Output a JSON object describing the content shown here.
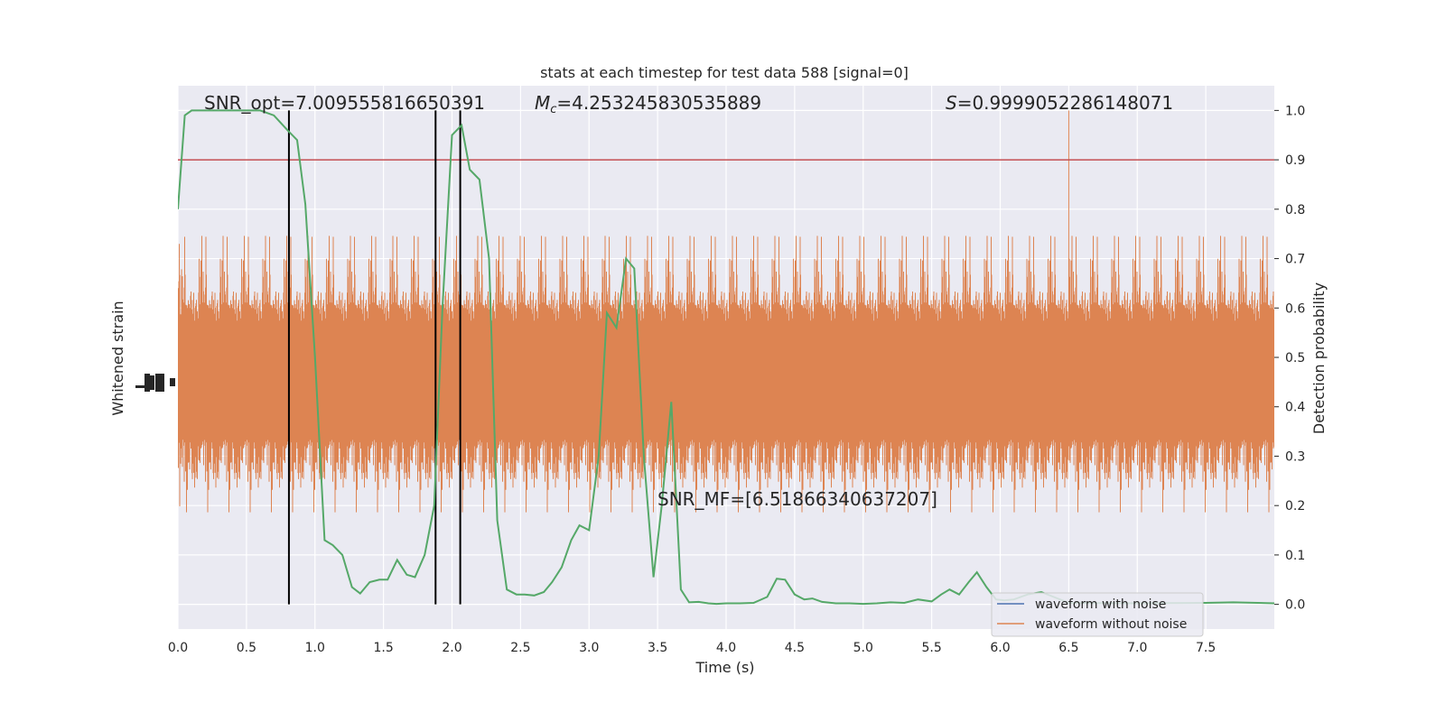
{
  "chart_data": {
    "type": "line",
    "title": "stats at each timestep for test data 588 [signal=0]",
    "xlabel": "Time (s)",
    "ylabel_left": "Whitened strain",
    "ylabel_right": "Detection probability",
    "xlim": [
      0.0,
      8.0
    ],
    "ylim_right": [
      -0.05,
      1.05
    ],
    "x_ticks": [
      "0.0",
      "0.5",
      "1.0",
      "1.5",
      "2.0",
      "2.5",
      "3.0",
      "3.5",
      "4.0",
      "4.5",
      "5.0",
      "5.5",
      "6.0",
      "6.5",
      "7.0",
      "7.5"
    ],
    "y_ticks_right": [
      "0.0",
      "0.1",
      "0.2",
      "0.3",
      "0.4",
      "0.5",
      "0.6",
      "0.7",
      "0.8",
      "0.9",
      "1.0"
    ],
    "grid": true,
    "annotations": {
      "snr_opt": "SNR_opt=7.009555816650391",
      "mc_symbol": "M",
      "mc_sub": "c",
      "mc_value": "=4.253245830535889",
      "s_symbol": "S",
      "s_value": "=0.9999052286148071",
      "snr_mf": "SNR_MF=[6.51866340637207]"
    },
    "threshold": 0.9,
    "vertical_markers": [
      0.81,
      1.88,
      2.06
    ],
    "legend": {
      "position": "lower-right",
      "entries": [
        {
          "label": "waveform with noise",
          "color": "#4c72b0"
        },
        {
          "label": "waveform without noise",
          "color": "#dd8452"
        }
      ]
    },
    "detection_probability": {
      "color": "#55a868",
      "x": [
        0.0,
        0.05,
        0.1,
        0.15,
        0.2,
        0.3,
        0.4,
        0.5,
        0.6,
        0.7,
        0.8,
        0.87,
        0.93,
        1.0,
        1.07,
        1.13,
        1.2,
        1.27,
        1.33,
        1.4,
        1.47,
        1.53,
        1.6,
        1.67,
        1.73,
        1.8,
        1.87,
        1.93,
        2.0,
        2.07,
        2.13,
        2.2,
        2.27,
        2.33,
        2.4,
        2.47,
        2.53,
        2.6,
        2.67,
        2.73,
        2.8,
        2.87,
        2.93,
        3.0,
        3.07,
        3.13,
        3.2,
        3.27,
        3.33,
        3.4,
        3.47,
        3.53,
        3.6,
        3.67,
        3.73,
        3.8,
        3.87,
        3.93,
        4.0,
        4.1,
        4.2,
        4.3,
        4.37,
        4.43,
        4.5,
        4.57,
        4.63,
        4.7,
        4.8,
        4.9,
        5.0,
        5.1,
        5.2,
        5.3,
        5.4,
        5.5,
        5.57,
        5.63,
        5.7,
        5.77,
        5.83,
        5.9,
        5.97,
        6.03,
        6.1,
        6.2,
        6.3,
        6.5,
        7.0,
        7.5,
        7.7,
        8.0
      ],
      "y": [
        0.8,
        0.99,
        1.0,
        1.0,
        1.0,
        1.0,
        1.0,
        1.0,
        1.0,
        0.99,
        0.96,
        0.94,
        0.81,
        0.5,
        0.13,
        0.12,
        0.1,
        0.035,
        0.022,
        0.045,
        0.05,
        0.05,
        0.09,
        0.06,
        0.055,
        0.1,
        0.2,
        0.6,
        0.95,
        0.97,
        0.88,
        0.86,
        0.7,
        0.17,
        0.03,
        0.02,
        0.02,
        0.018,
        0.025,
        0.045,
        0.075,
        0.13,
        0.16,
        0.15,
        0.3,
        0.59,
        0.56,
        0.7,
        0.68,
        0.3,
        0.055,
        0.2,
        0.41,
        0.03,
        0.004,
        0.005,
        0.002,
        0.001,
        0.002,
        0.002,
        0.003,
        0.015,
        0.052,
        0.05,
        0.02,
        0.01,
        0.012,
        0.005,
        0.002,
        0.002,
        0.001,
        0.002,
        0.004,
        0.003,
        0.01,
        0.006,
        0.02,
        0.03,
        0.02,
        0.045,
        0.065,
        0.035,
        0.01,
        0.008,
        0.01,
        0.02,
        0.025,
        0.003,
        0.002,
        0.003,
        0.004,
        0.002
      ]
    }
  }
}
